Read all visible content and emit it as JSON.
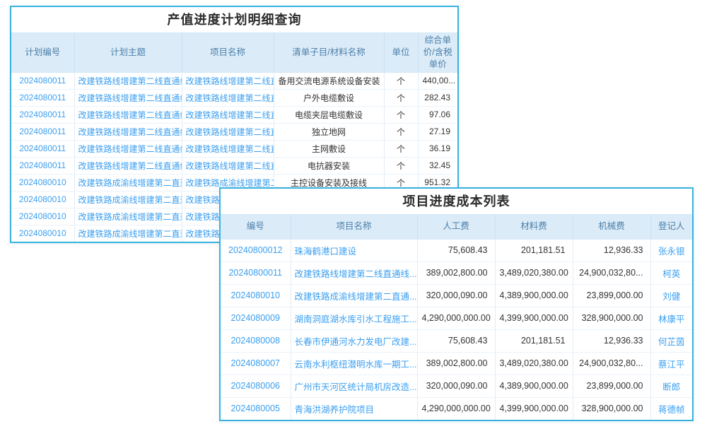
{
  "colors": {
    "panel_border": "#38b2dd",
    "header_bg": "#dcebf8",
    "header_text": "#4b80aa",
    "link_text": "#3b9ff0",
    "body_text": "#333333",
    "title_text": "#2b2b2b"
  },
  "panel1": {
    "title": "产值进度计划明细查询",
    "columns": [
      "计划编号",
      "计划主题",
      "项目名称",
      "清单子目/材料名称",
      "单位",
      "综合单价/含税单价"
    ],
    "rows": [
      [
        "2024080011",
        "改建铁路线增建第二线直通线",
        "改建铁路线增建第二线直通线",
        "备用交流电源系统设备安装",
        "个",
        "440,00..."
      ],
      [
        "2024080011",
        "改建铁路线增建第二线直通线",
        "改建铁路线增建第二线直通线",
        "户外电缆敷设",
        "个",
        "282.43"
      ],
      [
        "2024080011",
        "改建铁路线增建第二线直通线",
        "改建铁路线增建第二线直通线",
        "电缆夹层电缆敷设",
        "个",
        "97.06"
      ],
      [
        "2024080011",
        "改建铁路线增建第二线直通线",
        "改建铁路线增建第二线直通线",
        "独立地网",
        "个",
        "27.19"
      ],
      [
        "2024080011",
        "改建铁路线增建第二线直通线",
        "改建铁路线增建第二线直通线",
        "主网敷设",
        "个",
        "36.19"
      ],
      [
        "2024080011",
        "改建铁路线增建第二线直通线",
        "改建铁路线增建第二线直通线",
        "电抗器安装",
        "个",
        "32.45"
      ],
      [
        "2024080010",
        "改建铁路成渝线增建第二直通线",
        "改建铁路成渝线增建第二直通线",
        "主控设备安装及接线",
        "个",
        "951.32"
      ],
      [
        "2024080010",
        "改建铁路成渝线增建第二直通线",
        "改建铁路成渝线增建第二直通线",
        "",
        "",
        ""
      ],
      [
        "2024080010",
        "改建铁路成渝线增建第二直通线",
        "改建铁路成渝线增建第二直通线",
        "",
        "",
        ""
      ],
      [
        "2024080010",
        "改建铁路成渝线增建第二直通线",
        "改建铁路成渝线增建第二直通线",
        "",
        "",
        ""
      ]
    ]
  },
  "panel2": {
    "title": "项目进度成本列表",
    "columns": [
      "编号",
      "项目名称",
      "人工费",
      "材料费",
      "机械费",
      "登记人"
    ],
    "rows": [
      [
        "20240800012",
        "珠海鹤港口建设",
        "75,608.43",
        "201,181.51",
        "12,936.33",
        "张永银"
      ],
      [
        "20240800011",
        "改建铁路线增建第二线直通线...",
        "389,002,800.00",
        "3,489,020,380.00",
        "24,900,032,80...",
        "柯英"
      ],
      [
        "2024080010",
        "改建铁路成渝线增建第二直通...",
        "320,000,090.00",
        "4,389,900,000.00",
        "23,899,000.00",
        "刘健"
      ],
      [
        "2024080009",
        "湖南洞庭湖水库引水工程施工...",
        "4,290,000,000.00",
        "4,399,900,000.00",
        "328,900,000.00",
        "林康平"
      ],
      [
        "2024080008",
        "长春市伊通河水力发电厂改建...",
        "75,608.43",
        "201,181.51",
        "12,936.33",
        "何芷茵"
      ],
      [
        "2024080007",
        "云南水利枢纽潜明水库一期工...",
        "389,002,800.00",
        "3,489,020,380.00",
        "24,900,032,80...",
        "蔡江平"
      ],
      [
        "2024080006",
        "广州市天河区统计局机房改造...",
        "320,000,090.00",
        "4,389,900,000.00",
        "23,899,000.00",
        "断郎"
      ],
      [
        "2024080005",
        "青海洪湖养护院项目",
        "4,290,000,000.00",
        "4,399,900,000.00",
        "328,900,000.00",
        "蒋德帧"
      ]
    ]
  }
}
